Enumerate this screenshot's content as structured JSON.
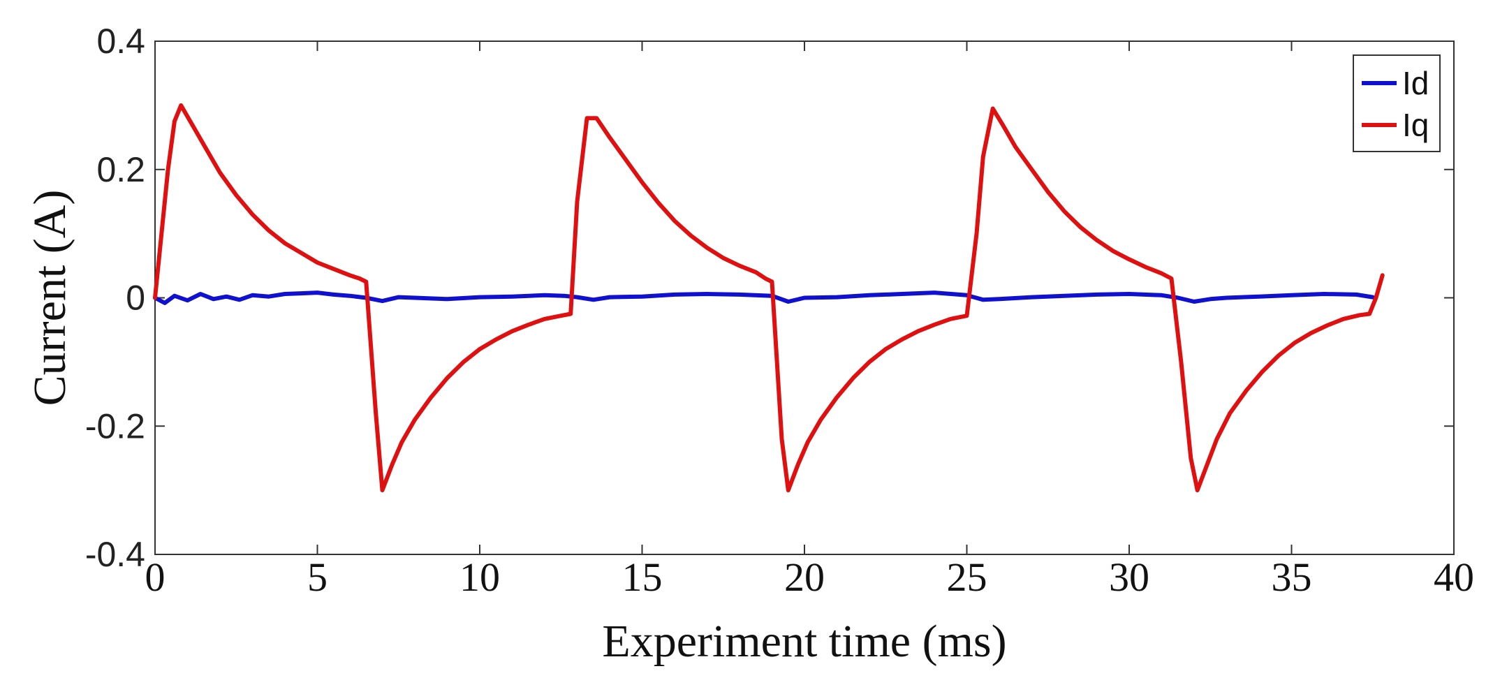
{
  "chart_data": {
    "type": "line",
    "title": "",
    "xlabel": "Experiment time (ms)",
    "ylabel": "Current (A)",
    "xlim": [
      0,
      40
    ],
    "ylim": [
      -0.4,
      0.4
    ],
    "xticks": [
      0,
      5,
      10,
      15,
      20,
      25,
      30,
      35,
      40
    ],
    "yticks": [
      -0.4,
      -0.2,
      0,
      0.2,
      0.4
    ],
    "xtick_labels": [
      "0",
      "5",
      "10",
      "15",
      "20",
      "25",
      "30",
      "35",
      "40"
    ],
    "ytick_labels": [
      "-0.4",
      "-0.2",
      "0",
      "0.2",
      "0.4"
    ],
    "grid": false,
    "legend_position": "top-right",
    "colors": {
      "Id": "#1010d0",
      "Iq": "#e01010"
    },
    "series": [
      {
        "name": "Id",
        "x": [
          0.0,
          0.3,
          0.6,
          1.0,
          1.4,
          1.8,
          2.2,
          2.6,
          3.0,
          3.5,
          4.0,
          4.5,
          5.0,
          5.5,
          6.0,
          6.5,
          7.0,
          7.5,
          8.0,
          9.0,
          10.0,
          11.0,
          12.0,
          12.6,
          13.0,
          13.5,
          14.0,
          15.0,
          16.0,
          17.0,
          18.0,
          19.0,
          19.5,
          20.0,
          21.0,
          22.0,
          23.0,
          24.0,
          25.0,
          25.5,
          26.0,
          27.0,
          28.0,
          29.0,
          30.0,
          31.0,
          31.5,
          32.0,
          32.5,
          33.0,
          34.0,
          35.0,
          36.0,
          37.0,
          37.5
        ],
        "y": [
          0.0,
          -0.008,
          0.003,
          -0.004,
          0.006,
          -0.002,
          0.002,
          -0.003,
          0.004,
          0.002,
          0.006,
          0.007,
          0.008,
          0.005,
          0.003,
          0.0,
          -0.005,
          0.001,
          0.0,
          -0.002,
          0.001,
          0.002,
          0.004,
          0.003,
          0.001,
          -0.003,
          0.001,
          0.002,
          0.005,
          0.006,
          0.005,
          0.003,
          -0.006,
          0.0,
          0.001,
          0.004,
          0.006,
          0.008,
          0.004,
          -0.003,
          -0.002,
          0.001,
          0.003,
          0.005,
          0.006,
          0.004,
          0.0,
          -0.006,
          -0.002,
          0.0,
          0.002,
          0.004,
          0.006,
          0.005,
          0.001
        ]
      },
      {
        "name": "Iq",
        "x": [
          0.0,
          0.2,
          0.4,
          0.6,
          0.8,
          1.2,
          1.6,
          2.0,
          2.5,
          3.0,
          3.5,
          4.0,
          4.5,
          5.0,
          5.5,
          6.0,
          6.3,
          6.5,
          6.8,
          7.0,
          7.3,
          7.6,
          8.0,
          8.5,
          9.0,
          9.5,
          10.0,
          10.5,
          11.0,
          11.5,
          12.0,
          12.5,
          12.8,
          13.0,
          13.3,
          13.6,
          14.0,
          14.5,
          15.0,
          15.5,
          16.0,
          16.5,
          17.0,
          17.5,
          18.0,
          18.5,
          18.8,
          19.0,
          19.3,
          19.5,
          19.8,
          20.1,
          20.5,
          21.0,
          21.5,
          22.0,
          22.5,
          23.0,
          23.5,
          24.0,
          24.5,
          25.0,
          25.3,
          25.5,
          25.8,
          26.1,
          26.5,
          27.0,
          27.5,
          28.0,
          28.5,
          29.0,
          29.5,
          30.0,
          30.5,
          31.0,
          31.3,
          31.6,
          31.9,
          32.1,
          32.4,
          32.7,
          33.1,
          33.6,
          34.1,
          34.6,
          35.1,
          35.6,
          36.1,
          36.6,
          37.1,
          37.4,
          37.6,
          37.8
        ],
        "y": [
          0.0,
          0.1,
          0.2,
          0.275,
          0.3,
          0.265,
          0.23,
          0.195,
          0.16,
          0.13,
          0.105,
          0.085,
          0.07,
          0.055,
          0.045,
          0.035,
          0.03,
          0.025,
          -0.18,
          -0.3,
          -0.26,
          -0.225,
          -0.19,
          -0.155,
          -0.125,
          -0.1,
          -0.08,
          -0.065,
          -0.052,
          -0.042,
          -0.033,
          -0.028,
          -0.025,
          0.15,
          0.28,
          0.28,
          0.25,
          0.215,
          0.18,
          0.148,
          0.12,
          0.097,
          0.078,
          0.062,
          0.05,
          0.04,
          0.03,
          0.025,
          -0.22,
          -0.3,
          -0.26,
          -0.225,
          -0.19,
          -0.155,
          -0.125,
          -0.1,
          -0.08,
          -0.065,
          -0.052,
          -0.042,
          -0.033,
          -0.028,
          0.1,
          0.22,
          0.295,
          0.27,
          0.235,
          0.2,
          0.165,
          0.135,
          0.11,
          0.09,
          0.073,
          0.06,
          0.048,
          0.038,
          0.03,
          -0.1,
          -0.25,
          -0.3,
          -0.26,
          -0.22,
          -0.18,
          -0.145,
          -0.115,
          -0.09,
          -0.07,
          -0.055,
          -0.043,
          -0.033,
          -0.027,
          -0.025,
          0.0,
          0.035
        ]
      }
    ]
  }
}
